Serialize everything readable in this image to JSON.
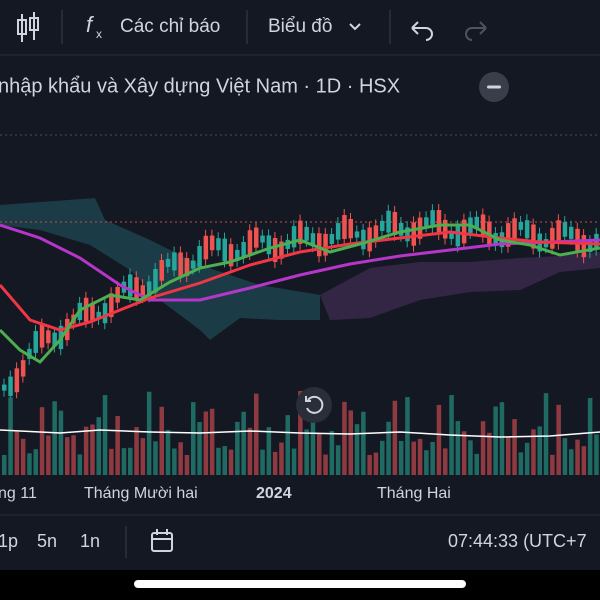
{
  "toolbar": {
    "indicators": "Các chỉ báo",
    "chart_type": "Biểu đồ"
  },
  "header": {
    "title": "nhập khẩu và Xây dựng Việt Nam · 1D · HSX"
  },
  "time_axis": {
    "labels": [
      "ng 11",
      "Tháng Mười hai",
      "2024",
      "Tháng Hai"
    ]
  },
  "footer": {
    "ranges": [
      "1p",
      "5n",
      "1n"
    ],
    "clock": "07:44:33 (UTC+7"
  }
}
